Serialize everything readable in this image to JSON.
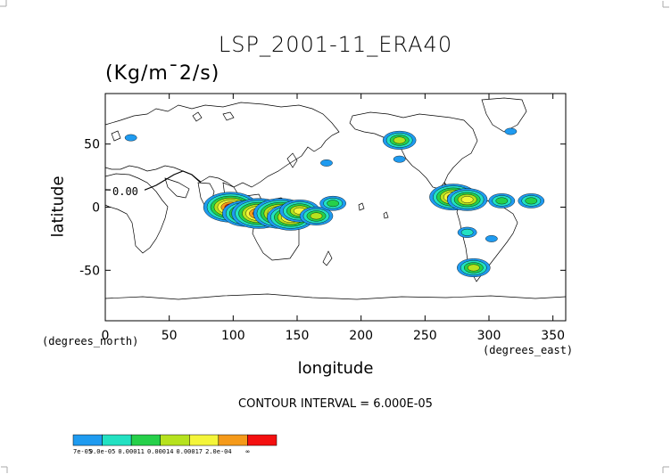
{
  "chart_data": {
    "type": "contour_map",
    "title": "LSP_2001-11_ERA40",
    "units": "(Kg/m¯2/s)",
    "xlabel": "longitude",
    "ylabel": "latitude",
    "x_unit_left": "(degrees_north)",
    "x_unit_right": "(degrees_east)",
    "xlim": [
      0,
      360
    ],
    "ylim": [
      -90,
      90
    ],
    "x_ticks": [
      "0",
      "50",
      "100",
      "150",
      "200",
      "250",
      "300",
      "350"
    ],
    "y_ticks": [
      "50",
      "0",
      "-50"
    ],
    "contour_line_label": "0.00",
    "contour_interval": "CONTOUR INTERVAL = 6.000E-05",
    "legend": {
      "labels": [
        "7e-05",
        "9.0e-05",
        "0.00011",
        "0.00014",
        "0.00017",
        "2.0e-04",
        "∞"
      ],
      "colors": [
        "#1f9bf0",
        "#23e1c2",
        "#26d04a",
        "#b6e21e",
        "#f4f53a",
        "#f59a1a",
        "#f41010"
      ]
    },
    "features": [
      {
        "lon": 98,
        "lat": 0,
        "level": 7
      },
      {
        "lon": 110,
        "lat": -5,
        "level": 6
      },
      {
        "lon": 120,
        "lat": -5,
        "level": 7
      },
      {
        "lon": 137,
        "lat": -5,
        "level": 7
      },
      {
        "lon": 145,
        "lat": -8,
        "level": 6
      },
      {
        "lon": 152,
        "lat": -3,
        "level": 5
      },
      {
        "lon": 165,
        "lat": -7,
        "level": 4
      },
      {
        "lon": 178,
        "lat": 3,
        "level": 3
      },
      {
        "lon": 230,
        "lat": 53,
        "level": 4
      },
      {
        "lon": 272,
        "lat": 8,
        "level": 6
      },
      {
        "lon": 283,
        "lat": 6,
        "level": 5
      },
      {
        "lon": 310,
        "lat": 5,
        "level": 3
      },
      {
        "lon": 333,
        "lat": 5,
        "level": 3
      },
      {
        "lon": 288,
        "lat": -48,
        "level": 4
      },
      {
        "lon": 283,
        "lat": -20,
        "level": 2
      },
      {
        "lon": 302,
        "lat": -25,
        "level": 1
      },
      {
        "lon": 173,
        "lat": 35,
        "level": 1
      },
      {
        "lon": 230,
        "lat": 38,
        "level": 1
      },
      {
        "lon": 317,
        "lat": 60,
        "level": 1
      },
      {
        "lon": 20,
        "lat": 55,
        "level": 1
      }
    ]
  }
}
